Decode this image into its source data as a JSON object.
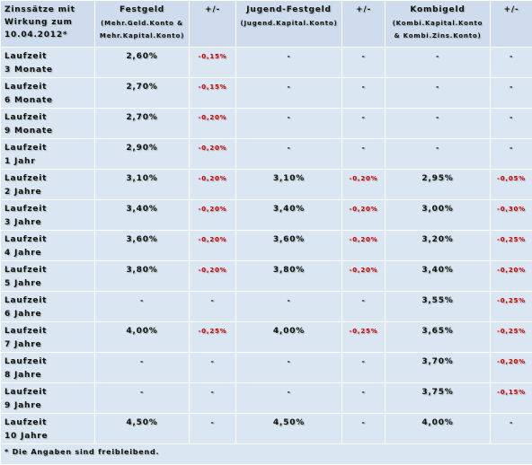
{
  "header": {
    "label": [
      "Zinssätze mit",
      "Wirkung zum",
      "10.04.2012*"
    ],
    "columns": [
      {
        "title": "Festgeld",
        "sub": [
          "(Mehr.Geld.Konto &",
          "Mehr.Kapital.Konto)"
        ]
      },
      {
        "title": "+/-"
      },
      {
        "title": "Jugend-Festgeld",
        "sub": [
          "(Jugend.Kapital.Konto)"
        ]
      },
      {
        "title": "+/-"
      },
      {
        "title": "Kombigeld",
        "sub": [
          "(Kombi.Kapital.Konto",
          "& Kombi.Zins.Konto)"
        ]
      },
      {
        "title": "+/-"
      }
    ]
  },
  "rows": [
    {
      "label": [
        "Laufzeit",
        "3 Monate"
      ],
      "cells": [
        "2,60%",
        "-0,15%",
        "-",
        "-",
        "-",
        "-"
      ]
    },
    {
      "label": [
        "Laufzeit",
        "6 Monate"
      ],
      "cells": [
        "2,70%",
        "-0,15%",
        "-",
        "-",
        "-",
        "-"
      ]
    },
    {
      "label": [
        "Laufzeit",
        "9 Monate"
      ],
      "cells": [
        "2,70%",
        "-0,20%",
        "-",
        "-",
        "-",
        "-"
      ]
    },
    {
      "label": [
        "Laufzeit",
        "1 Jahr"
      ],
      "cells": [
        "2,90%",
        "-0,20%",
        "-",
        "-",
        "-",
        "-"
      ]
    },
    {
      "label": [
        "Laufzeit",
        "2 Jahre"
      ],
      "cells": [
        "3,10%",
        "-0,20%",
        "3,10%",
        "-0,20%",
        "2,95%",
        "-0,05%"
      ]
    },
    {
      "label": [
        "Laufzeit",
        "3 Jahre"
      ],
      "cells": [
        "3,40%",
        "-0,20%",
        "3,40%",
        "-0,20%",
        "3,00%",
        "-0,30%"
      ]
    },
    {
      "label": [
        "Laufzeit",
        "4 Jahre"
      ],
      "cells": [
        "3,60%",
        "-0,20%",
        "3,60%",
        "-0,20%",
        "3,20%",
        "-0,25%"
      ]
    },
    {
      "label": [
        "Laufzeit",
        "5 Jahre"
      ],
      "cells": [
        "3,80%",
        "-0,20%",
        "3,80%",
        "-0,20%",
        "3,40%",
        "-0,20%"
      ]
    },
    {
      "label": [
        "Laufzeit",
        "6 Jahre"
      ],
      "cells": [
        "-",
        "-",
        "-",
        "-",
        "3,55%",
        "-0,25%"
      ]
    },
    {
      "label": [
        "Laufzeit",
        "7 Jahre"
      ],
      "cells": [
        "4,00%",
        "-0,25%",
        "4,00%",
        "-0,25%",
        "3,65%",
        "-0,25%"
      ]
    },
    {
      "label": [
        "Laufzeit",
        "8 Jahre"
      ],
      "cells": [
        "-",
        "-",
        "-",
        "-",
        "3,70%",
        "-0,20%"
      ]
    },
    {
      "label": [
        "Laufzeit",
        "9 Jahre"
      ],
      "cells": [
        "-",
        "-",
        "-",
        "-",
        "3,75%",
        "-0,15%"
      ]
    },
    {
      "label": [
        "Laufzeit",
        "10 Jahre"
      ],
      "cells": [
        "4,50%",
        "-",
        "4,50%",
        "-",
        "4,00%",
        "-"
      ]
    }
  ],
  "footnote": "* Die Angaben sind freibleibend."
}
